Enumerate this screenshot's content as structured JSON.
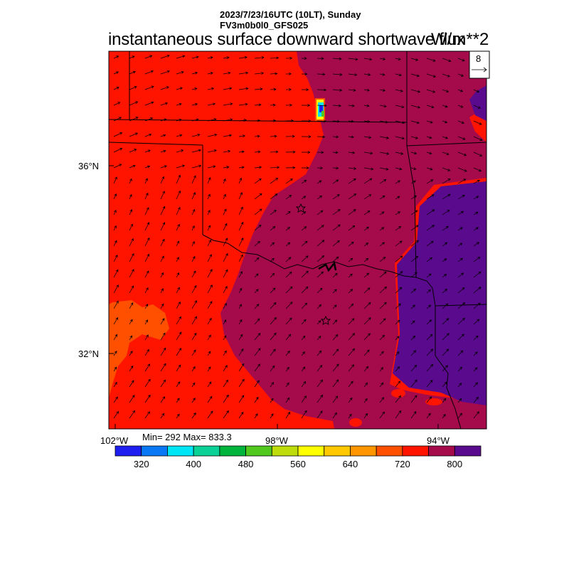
{
  "header": {
    "date_line": "2023/7/23/16UTC (10LT), Sunday",
    "model_line": "FV3m0b0l0_GFS025",
    "title": "instantaneous surface downward shortwave flux",
    "units": "W/m**2"
  },
  "map": {
    "lat_labels": [
      "36°N",
      "32°N"
    ],
    "lon_labels": [
      "102°W",
      "98°W",
      "94°W"
    ],
    "stats": "Min= 292 Max= 833.3",
    "vector_reference": "8",
    "cities": [
      "star-marker-oklahoma-city",
      "star-marker-dallas"
    ]
  },
  "colorbar": {
    "tick_labels": [
      "320",
      "400",
      "480",
      "560",
      "640",
      "720",
      "800"
    ],
    "colors": [
      "#1e1ef0",
      "#0a78f5",
      "#00e6f5",
      "#0ad296",
      "#00b43c",
      "#50c81e",
      "#bedc0a",
      "#ffff00",
      "#ffc800",
      "#ff9600",
      "#ff5000",
      "#ff1400",
      "#a50a4b",
      "#5a0a8c"
    ]
  }
}
